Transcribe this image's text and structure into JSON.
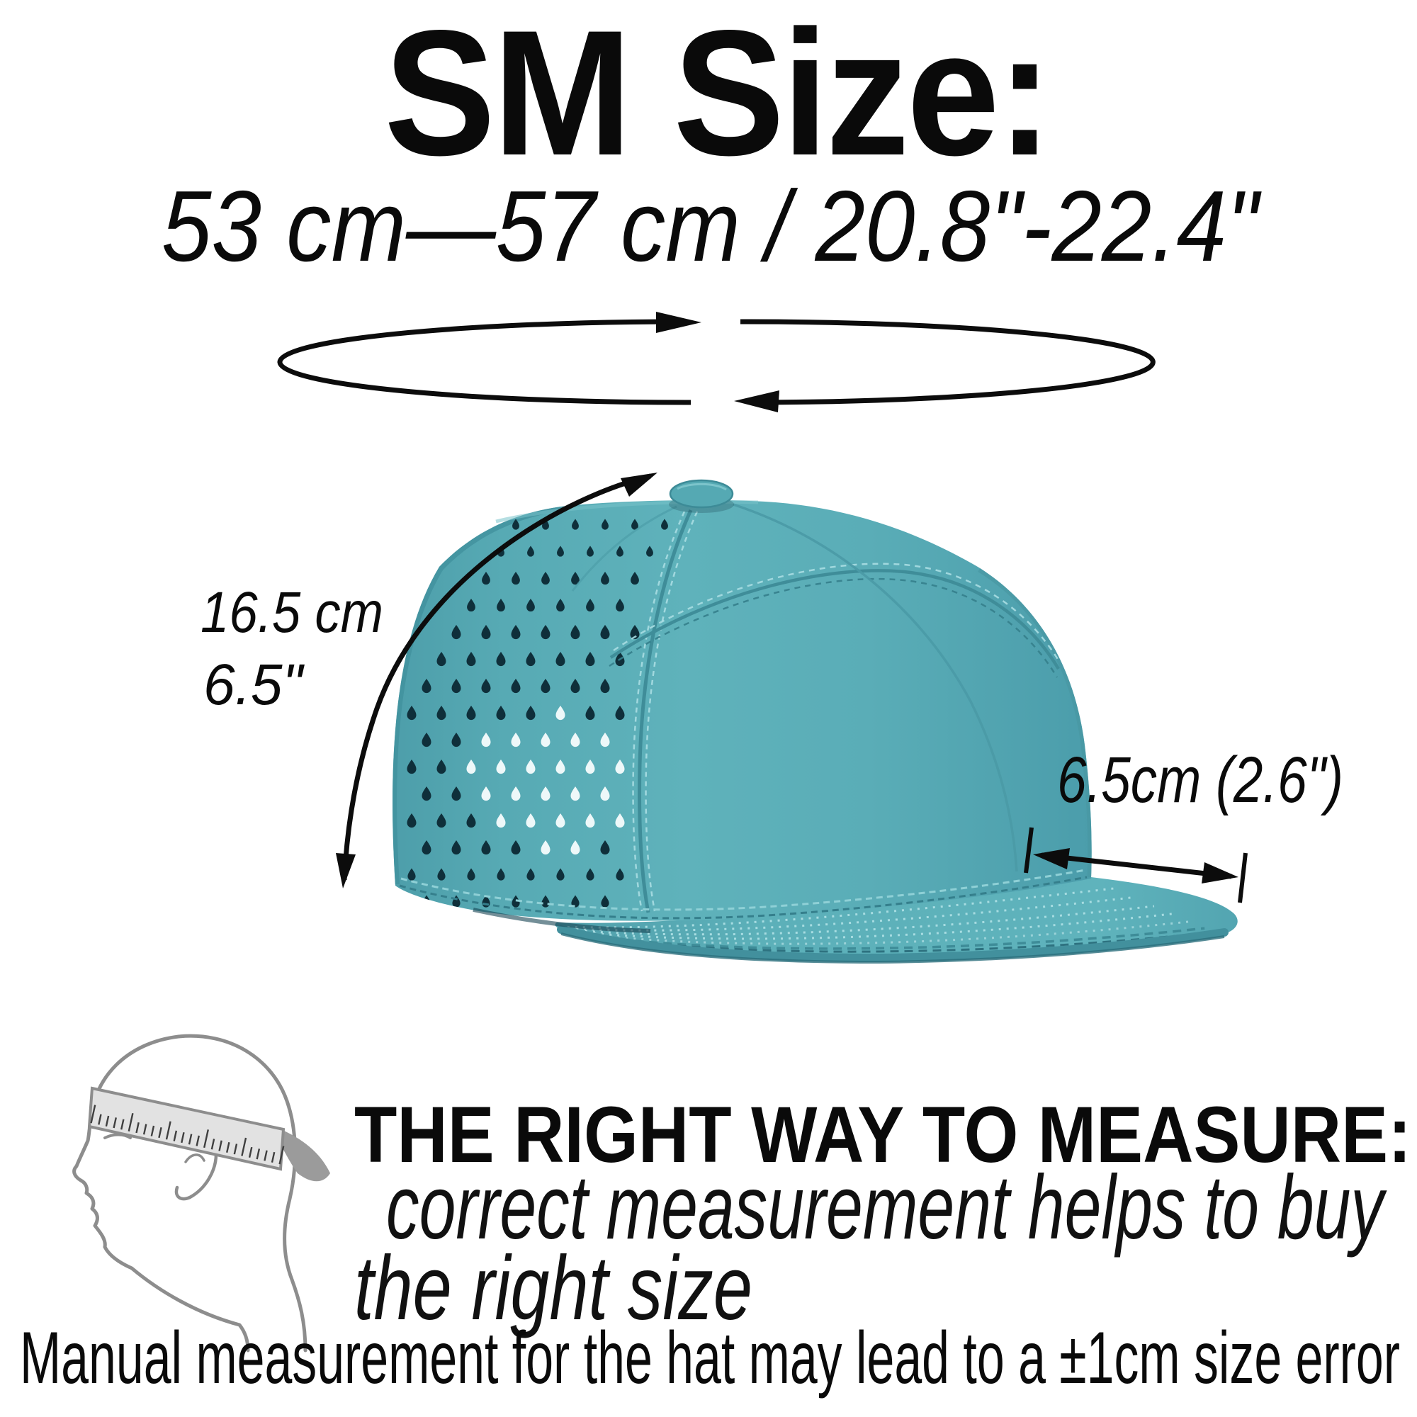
{
  "title": "SM Size:",
  "subtitle": "53 cm—57 cm / 20.8\"-22.4\"",
  "hat_diagram": {
    "height_label_cm": "16.5 cm",
    "height_label_in": "6.5\"",
    "brim_label": "6.5cm (2.6\")"
  },
  "measure_guide": {
    "heading": "THE RIGHT WAY TO MEASURE:",
    "subtext_line1": "correct measurement helps to buy",
    "subtext_line2": "the right size",
    "footnote": "Manual measurement for the hat may lead to a ±1cm size error"
  },
  "colors": {
    "hat-teal": "#5badb6",
    "hat-teal-dark": "#4a9aa6",
    "hat-teal-deep": "#2e7280",
    "hat-hole": "#0f2f3a",
    "ink": "#0c0c0c",
    "icon-gray": "#8d8d8d",
    "tape-gray": "#e2e2e2",
    "tape-tail": "#9b9b9b"
  },
  "icons": [
    {
      "name": "circumference-loop-icon"
    },
    {
      "name": "crown-height-arrow-icon"
    },
    {
      "name": "brim-length-arrow-icon"
    },
    {
      "name": "head-measuring-tape-icon"
    }
  ]
}
